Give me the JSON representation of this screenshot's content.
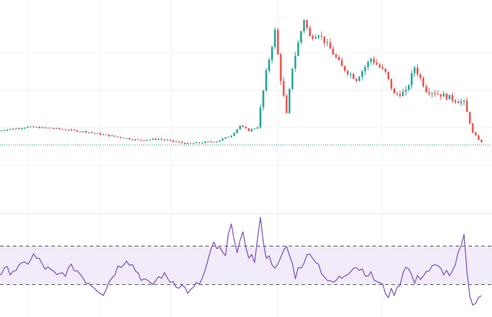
{
  "colors": {
    "up": "#26a69a",
    "down": "#ef5350",
    "grid": "#eef0f3",
    "last_price_line": "#1e8c80",
    "rsi_line": "#7e57c2",
    "rsi_band_fill": "#f1ebfa",
    "rsi_band_border": "#555555",
    "divider": "#e0e3eb"
  },
  "chart_data": [
    {
      "type": "candlestick",
      "name": "",
      "grid": true,
      "ylim": [
        -5.5,
        11.5
      ],
      "last_price": 0,
      "anchors": [
        [
          0,
          1.2
        ],
        [
          10,
          1.5
        ],
        [
          18,
          1.4
        ],
        [
          30,
          1.1
        ],
        [
          40,
          0.7
        ],
        [
          48,
          0.4
        ],
        [
          55,
          0.5
        ],
        [
          65,
          0.1
        ],
        [
          75,
          0.3
        ],
        [
          80,
          0.8
        ],
        [
          83,
          1.6
        ],
        [
          86,
          1.2
        ],
        [
          89,
          1.5
        ],
        [
          92,
          6.0
        ],
        [
          95,
          9.5
        ],
        [
          97,
          5.5
        ],
        [
          99,
          2.5
        ],
        [
          101,
          6.5
        ],
        [
          103,
          8.5
        ],
        [
          105,
          10.5
        ],
        [
          107,
          9.0
        ],
        [
          110,
          9.3
        ],
        [
          114,
          8.0
        ],
        [
          118,
          6.5
        ],
        [
          123,
          5.5
        ],
        [
          128,
          7.2
        ],
        [
          133,
          6.0
        ],
        [
          136,
          4.2
        ],
        [
          140,
          4.4
        ],
        [
          143,
          6.5
        ],
        [
          147,
          4.6
        ],
        [
          152,
          4.2
        ],
        [
          160,
          3.5
        ],
        [
          163,
          1.0
        ],
        [
          166,
          0.2
        ]
      ]
    },
    {
      "type": "line",
      "name": "",
      "ylim": [
        0,
        100
      ],
      "band": [
        30,
        70
      ],
      "anchors": [
        [
          0,
          42
        ],
        [
          8,
          48
        ],
        [
          12,
          60
        ],
        [
          16,
          48
        ],
        [
          20,
          38
        ],
        [
          26,
          48
        ],
        [
          30,
          35
        ],
        [
          36,
          22
        ],
        [
          40,
          44
        ],
        [
          44,
          58
        ],
        [
          48,
          42
        ],
        [
          52,
          28
        ],
        [
          56,
          40
        ],
        [
          62,
          30
        ],
        [
          66,
          22
        ],
        [
          70,
          35
        ],
        [
          74,
          72
        ],
        [
          78,
          58
        ],
        [
          80,
          98
        ],
        [
          82,
          62
        ],
        [
          84,
          80
        ],
        [
          86,
          62
        ],
        [
          88,
          55
        ],
        [
          90,
          96
        ],
        [
          92,
          60
        ],
        [
          96,
          48
        ],
        [
          99,
          70
        ],
        [
          102,
          40
        ],
        [
          105,
          56
        ],
        [
          108,
          62
        ],
        [
          110,
          50
        ],
        [
          114,
          30
        ],
        [
          118,
          38
        ],
        [
          122,
          50
        ],
        [
          126,
          44
        ],
        [
          130,
          34
        ],
        [
          134,
          20
        ],
        [
          137,
          24
        ],
        [
          140,
          52
        ],
        [
          143,
          32
        ],
        [
          146,
          42
        ],
        [
          150,
          48
        ],
        [
          156,
          40
        ],
        [
          160,
          78
        ],
        [
          162,
          15
        ],
        [
          164,
          12
        ],
        [
          166,
          20
        ]
      ]
    }
  ]
}
